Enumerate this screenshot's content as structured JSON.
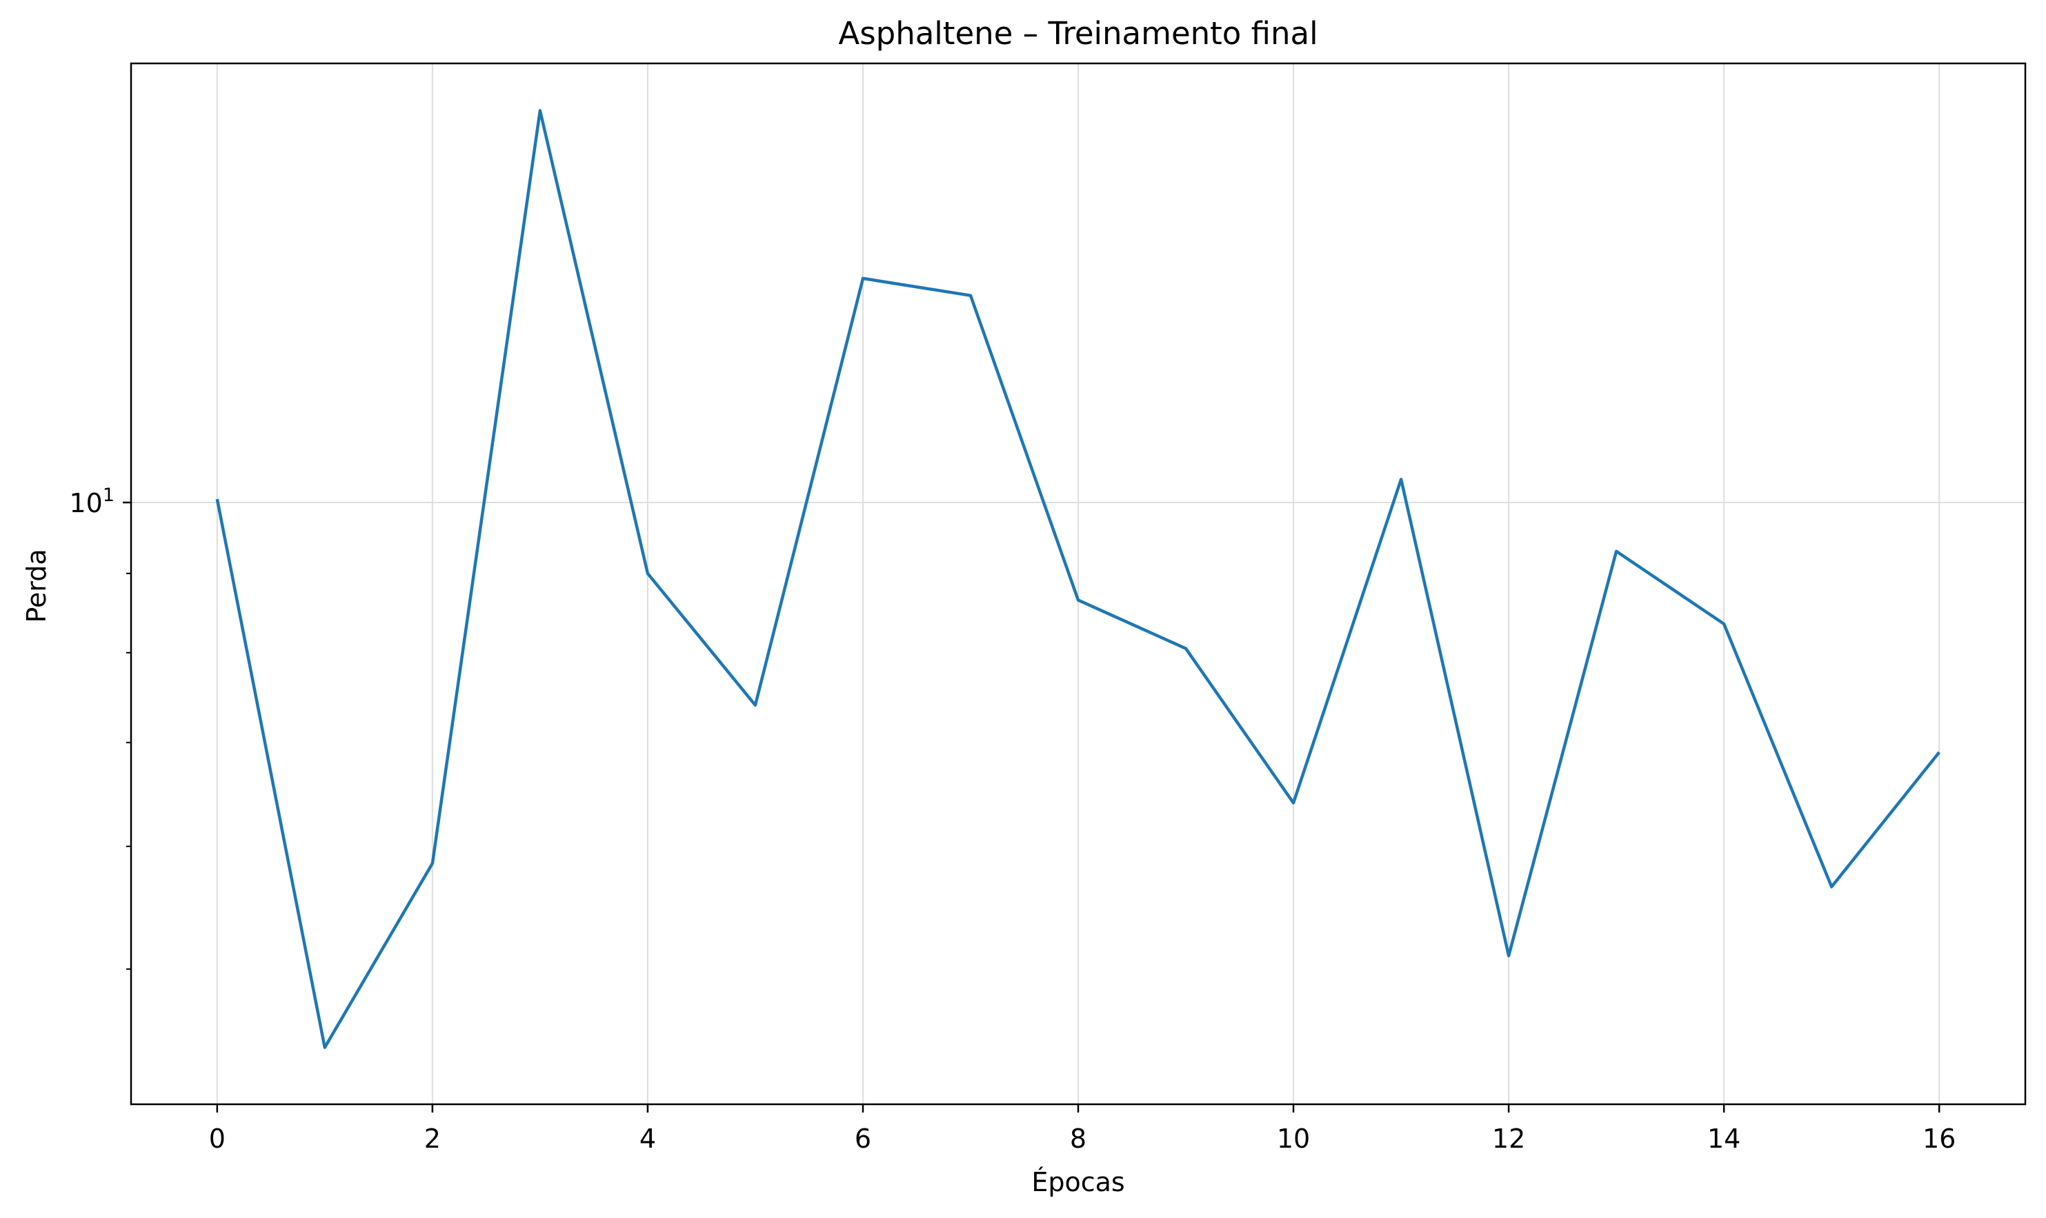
{
  "chart_data": {
    "type": "line",
    "title": "Asphaltene – Treinamento final",
    "xlabel": "Épocas",
    "ylabel": "Perda",
    "x": [
      0,
      1,
      2,
      3,
      4,
      5,
      6,
      7,
      8,
      9,
      10,
      11,
      12,
      13,
      14,
      15,
      16
    ],
    "series": [
      {
        "values": [
          10.05,
          4.45,
          5.85,
          17.9,
          9.0,
          7.4,
          13.95,
          13.6,
          8.65,
          8.05,
          6.4,
          10.35,
          5.1,
          9.3,
          8.35,
          5.65,
          6.9
        ],
        "color": "#1f77b4"
      }
    ],
    "xlim": [
      -0.8,
      16.8
    ],
    "ylim": [
      4.09,
      19.2
    ],
    "yscale": "log",
    "xticks": [
      0,
      2,
      4,
      6,
      8,
      10,
      12,
      14,
      16
    ],
    "xtick_labels": [
      "0",
      "2",
      "4",
      "6",
      "8",
      "10",
      "12",
      "14",
      "16"
    ],
    "yticks_major": [
      10
    ],
    "ytick_major_labels": [
      {
        "base": "10",
        "exp": "1"
      }
    ],
    "yticks_minor": [
      5,
      6,
      7,
      8,
      9
    ],
    "grid": true,
    "legend": "none"
  }
}
